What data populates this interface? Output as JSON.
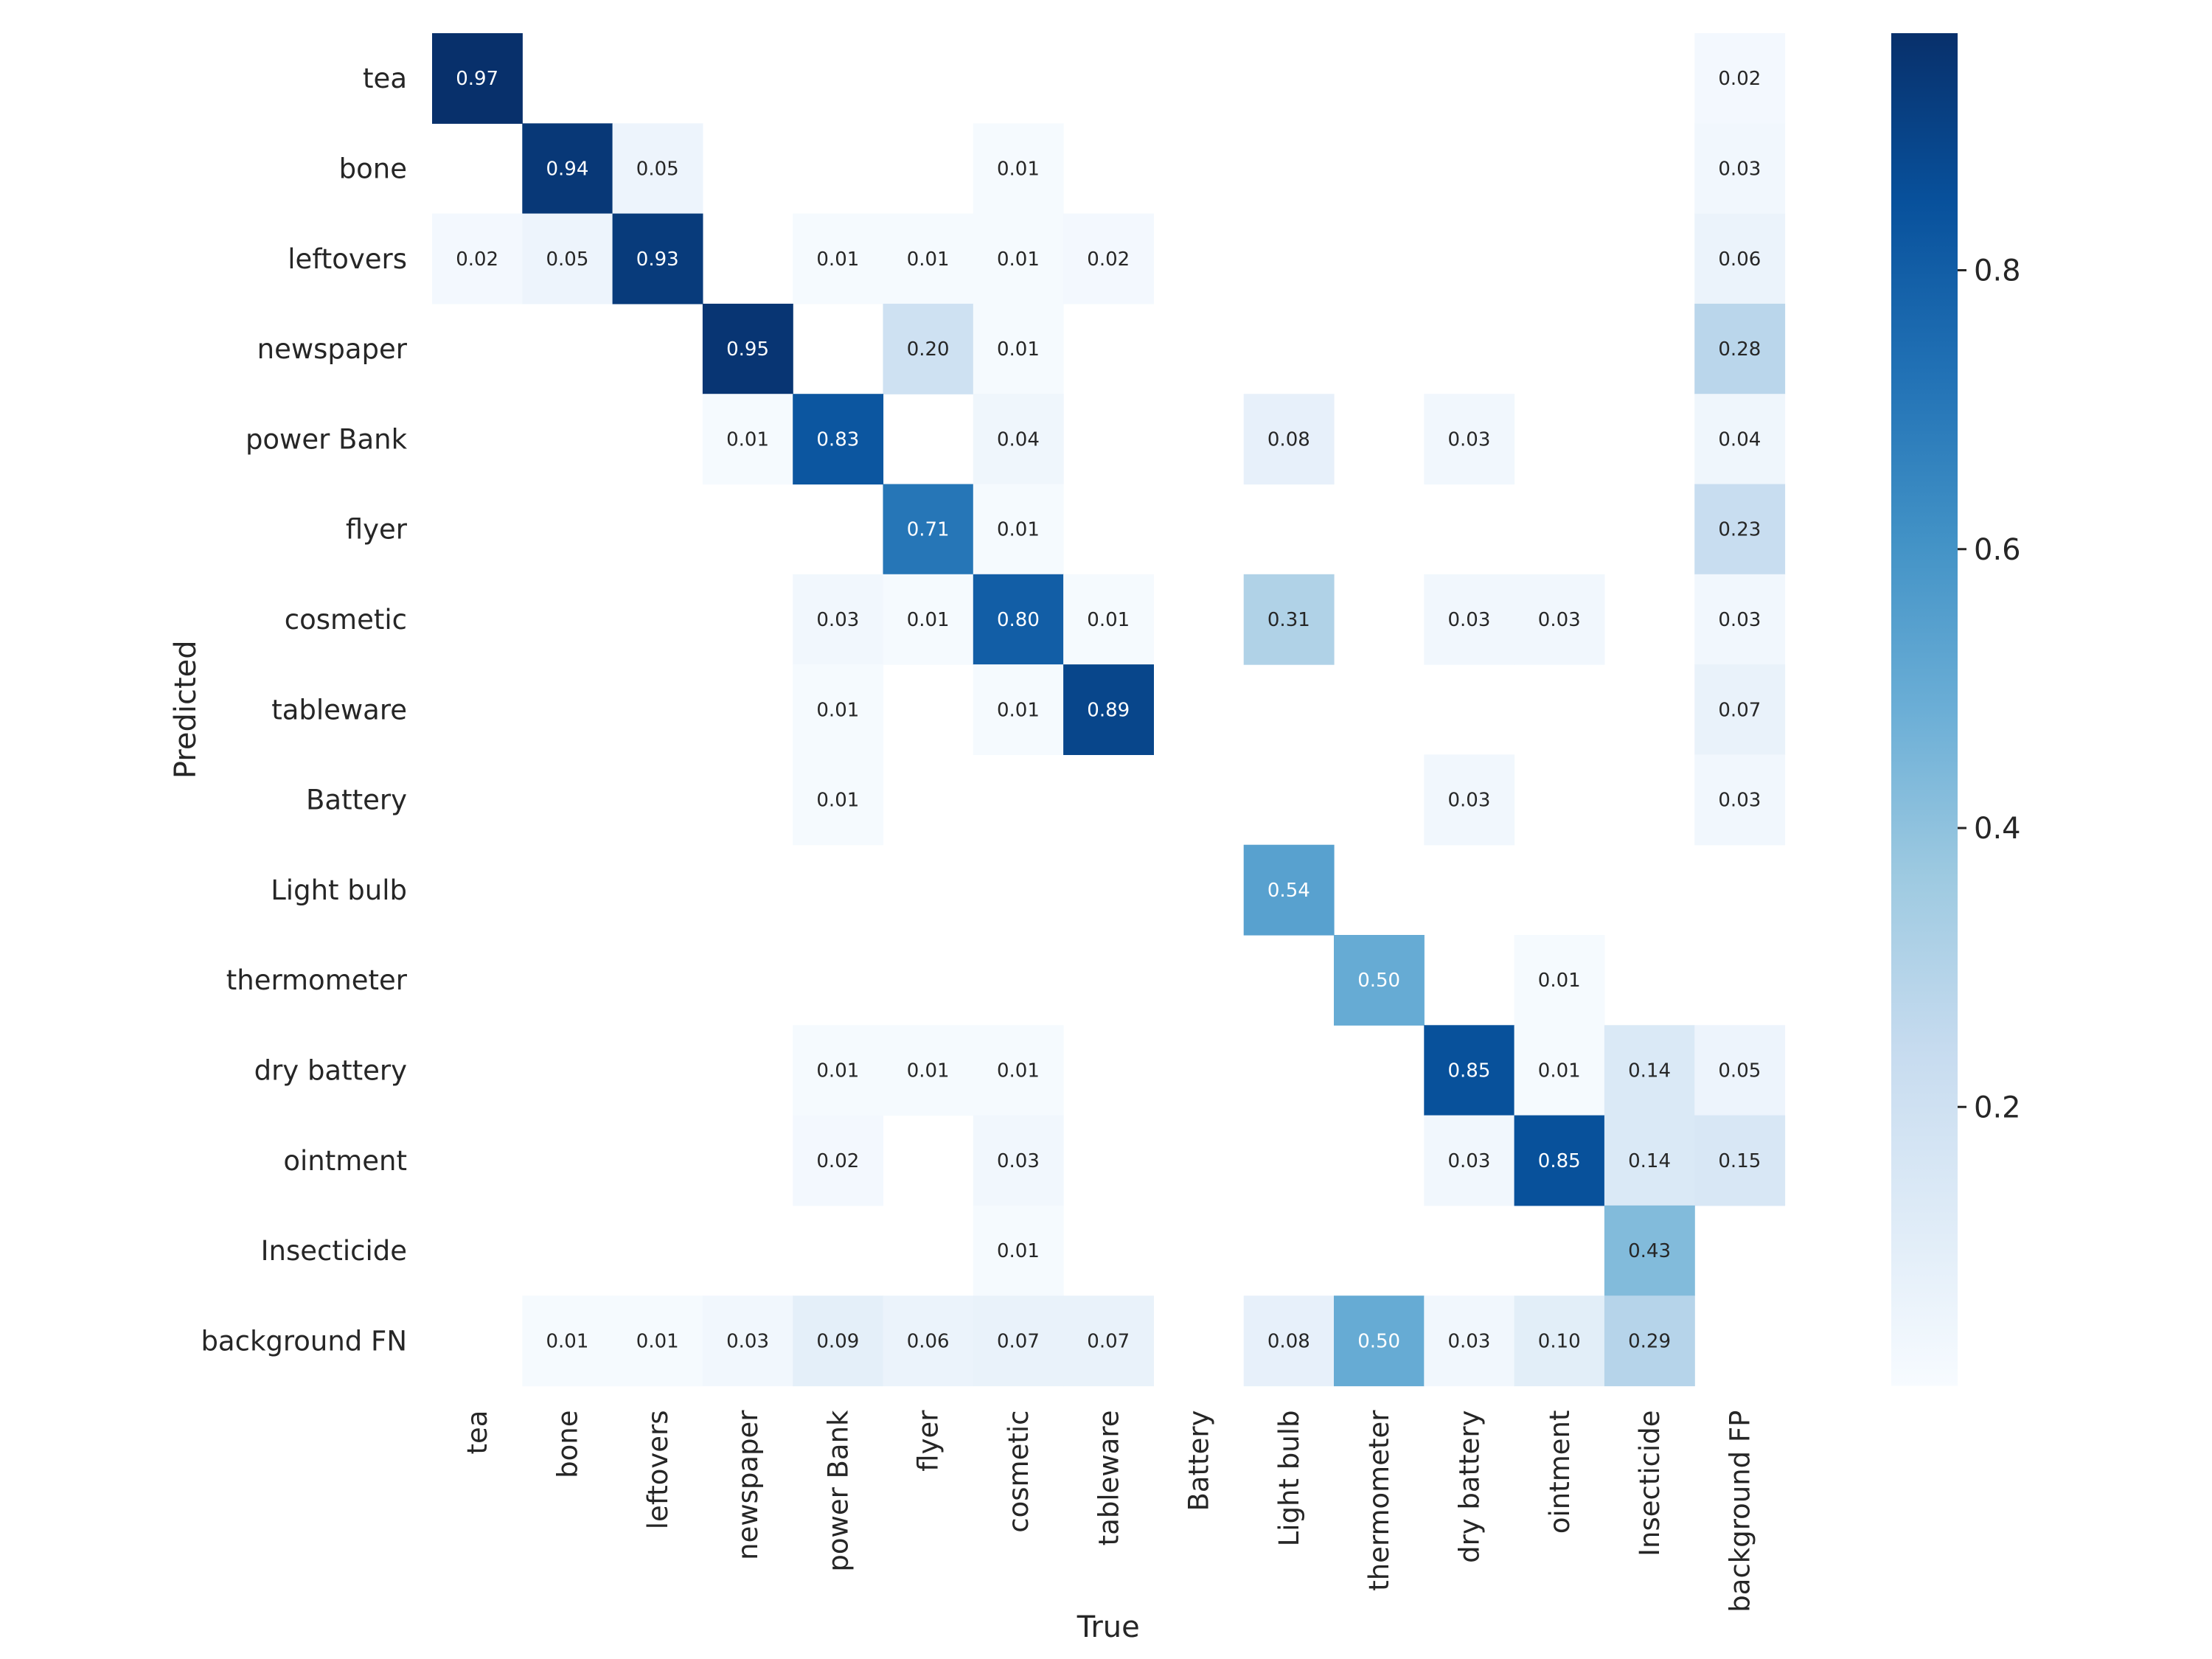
{
  "chart_data": {
    "type": "heatmap",
    "title": "",
    "xlabel": "True",
    "ylabel": "Predicted",
    "x_categories": [
      "tea",
      "bone",
      "leftovers",
      "newspaper",
      "power Bank",
      "flyer",
      "cosmetic",
      "tableware",
      "Battery",
      "Light bulb",
      "thermometer",
      "dry battery",
      "ointment",
      "Insecticide",
      "background FP"
    ],
    "y_categories": [
      "tea",
      "bone",
      "leftovers",
      "newspaper",
      "power Bank",
      "flyer",
      "cosmetic",
      "tableware",
      "Battery",
      "Light bulb",
      "thermometer",
      "dry battery",
      "ointment",
      "Insecticide",
      "background FN"
    ],
    "values": [
      [
        0.97,
        null,
        null,
        null,
        null,
        null,
        null,
        null,
        null,
        null,
        null,
        null,
        null,
        null,
        0.02
      ],
      [
        null,
        0.94,
        0.05,
        null,
        null,
        null,
        0.01,
        null,
        null,
        null,
        null,
        null,
        null,
        null,
        0.03
      ],
      [
        0.02,
        0.05,
        0.93,
        null,
        0.01,
        0.01,
        0.01,
        0.02,
        null,
        null,
        null,
        null,
        null,
        null,
        0.06
      ],
      [
        null,
        null,
        null,
        0.95,
        null,
        0.2,
        0.01,
        null,
        null,
        null,
        null,
        null,
        null,
        null,
        0.28
      ],
      [
        null,
        null,
        null,
        0.01,
        0.83,
        null,
        0.04,
        null,
        null,
        0.08,
        null,
        0.03,
        null,
        null,
        0.04
      ],
      [
        null,
        null,
        null,
        null,
        null,
        0.71,
        0.01,
        null,
        null,
        null,
        null,
        null,
        null,
        null,
        0.23
      ],
      [
        null,
        null,
        null,
        null,
        0.03,
        0.01,
        0.8,
        0.01,
        null,
        0.31,
        null,
        0.03,
        0.03,
        null,
        0.03
      ],
      [
        null,
        null,
        null,
        null,
        0.01,
        null,
        0.01,
        0.89,
        null,
        null,
        null,
        null,
        null,
        null,
        0.07
      ],
      [
        null,
        null,
        null,
        null,
        0.01,
        null,
        null,
        null,
        null,
        null,
        null,
        0.03,
        null,
        null,
        0.03
      ],
      [
        null,
        null,
        null,
        null,
        null,
        null,
        null,
        null,
        null,
        0.54,
        null,
        null,
        null,
        null,
        null
      ],
      [
        null,
        null,
        null,
        null,
        null,
        null,
        null,
        null,
        null,
        null,
        0.5,
        null,
        0.01,
        null,
        null
      ],
      [
        null,
        null,
        null,
        null,
        0.01,
        0.01,
        0.01,
        null,
        null,
        null,
        null,
        0.85,
        0.01,
        0.14,
        0.05
      ],
      [
        null,
        null,
        null,
        null,
        0.02,
        null,
        0.03,
        null,
        null,
        null,
        null,
        0.03,
        0.85,
        0.14,
        0.15
      ],
      [
        null,
        null,
        null,
        null,
        null,
        null,
        0.01,
        null,
        null,
        null,
        null,
        null,
        null,
        0.43,
        null
      ],
      [
        null,
        0.01,
        0.01,
        0.03,
        0.09,
        0.06,
        0.07,
        0.07,
        null,
        0.08,
        0.5,
        0.03,
        0.1,
        0.29,
        null
      ]
    ],
    "colormap": "Blues",
    "colorbar": {
      "min": 0.0,
      "max": 0.97,
      "ticks": [
        0.2,
        0.4,
        0.6,
        0.8
      ],
      "tick_labels": [
        "0.2",
        "0.4",
        "0.6",
        "0.8"
      ]
    },
    "grid": false,
    "legend": "colorbar-right"
  }
}
